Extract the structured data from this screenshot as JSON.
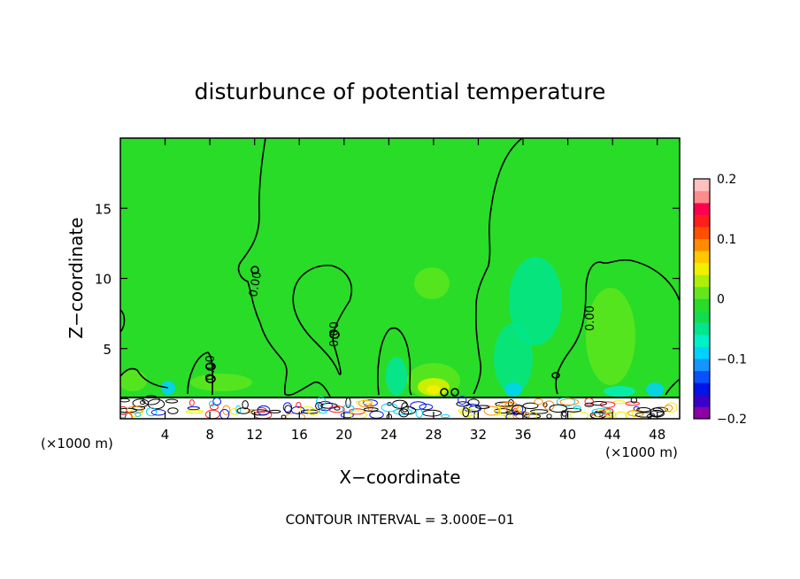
{
  "chart_data": {
    "type": "heatmap",
    "title": "disturbunce of potential temperature",
    "xlabel": "X−coordinate",
    "ylabel": "Z−coordinate",
    "x_unit": "(×1000 m)",
    "x_unit_right": "(×1000 m)",
    "xlim": [
      0,
      50
    ],
    "ylim": [
      0,
      20
    ],
    "x_ticks": [
      4,
      8,
      12,
      16,
      20,
      24,
      28,
      32,
      36,
      40,
      44,
      48
    ],
    "x_tick_labels": [
      "4",
      "8",
      "12",
      "16",
      "20",
      "24",
      "28",
      "32",
      "36",
      "40",
      "44",
      "48"
    ],
    "y_ticks": [
      5,
      10,
      15
    ],
    "y_tick_labels": [
      "5",
      "10",
      "15"
    ],
    "colorbar": {
      "min": -0.2,
      "max": 0.2,
      "tick_values": [
        0.2,
        0.1,
        0,
        -0.1,
        -0.2
      ],
      "tick_labels": [
        "0.2",
        "0.1",
        "0",
        "−0.1",
        "−0.2"
      ],
      "colors": [
        "#8c00a8",
        "#3a00c8",
        "#0014e6",
        "#0a50ff",
        "#1496ff",
        "#00d2ff",
        "#00f0c8",
        "#00e68c",
        "#14dc50",
        "#28dc28",
        "#64e61e",
        "#aaf00a",
        "#f0f000",
        "#ffc800",
        "#ff8c00",
        "#ff5000",
        "#ff1e1e",
        "#ff0050",
        "#ff8c8c",
        "#ffc0c0"
      ]
    },
    "field_description": "background ~ -0.01 to 0.01 with near-surface turbulence",
    "contour_labels": [
      "0.00",
      "0.00",
      "0.00",
      "0.00"
    ],
    "contour_interval_text": "CONTOUR INTERVAL = 3.000E−01"
  }
}
